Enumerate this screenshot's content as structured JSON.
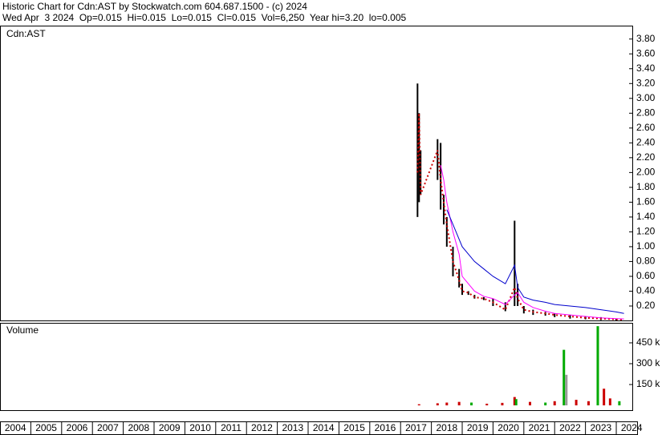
{
  "header": {
    "line1": "Historic Chart for Cdn:AST by Stockwatch.com 604.687.1500 - (c) 2024",
    "line2": "Wed Apr  3 2024  Op=0.015  Hi=0.015  Lo=0.015  Cl=0.015  Vol=6,250  Year hi=3.20  lo=0.005"
  },
  "chart_data": [
    {
      "type": "line",
      "title": "Cdn:AST",
      "x": [
        2017.55,
        2017.6,
        2017.65,
        2018.2,
        2018.3,
        2018.4,
        2018.5,
        2018.7,
        2018.9,
        2019.0,
        2019.2,
        2019.4,
        2019.7,
        2020.0,
        2020.4,
        2020.7,
        2020.8,
        2021.0,
        2021.3,
        2021.7,
        2022.0,
        2022.5,
        2023.0,
        2023.5,
        2024.0,
        2024.25
      ],
      "high": [
        3.2,
        2.8,
        2.3,
        2.45,
        2.4,
        1.7,
        1.4,
        1.0,
        0.7,
        0.5,
        0.4,
        0.35,
        0.32,
        0.3,
        0.25,
        1.35,
        0.5,
        0.2,
        0.15,
        0.12,
        0.1,
        0.08,
        0.06,
        0.05,
        0.03,
        0.015
      ],
      "low": [
        1.4,
        1.6,
        1.7,
        1.9,
        1.5,
        1.3,
        1.0,
        0.6,
        0.45,
        0.35,
        0.35,
        0.3,
        0.28,
        0.2,
        0.13,
        0.2,
        0.2,
        0.1,
        0.08,
        0.07,
        0.05,
        0.03,
        0.02,
        0.01,
        0.005,
        0.015
      ],
      "series": [
        {
          "color": "#cc0000",
          "dashed": true,
          "values": [
            2.0,
            2.8,
            1.7,
            2.3,
            1.9,
            1.6,
            1.3,
            0.8,
            0.55,
            0.4,
            0.38,
            0.32,
            0.3,
            0.25,
            0.15,
            0.45,
            0.3,
            0.15,
            0.12,
            0.1,
            0.08,
            0.06,
            0.04,
            0.03,
            0.02,
            0.015
          ]
        },
        {
          "color": "#ff00ff",
          "dashed": false,
          "values": [
            null,
            null,
            null,
            null,
            2.1,
            1.9,
            1.6,
            1.2,
            0.9,
            0.6,
            0.5,
            0.4,
            0.33,
            0.3,
            0.22,
            0.35,
            0.38,
            0.25,
            0.18,
            0.13,
            0.1,
            0.08,
            0.06,
            0.04,
            0.03,
            0.025
          ]
        },
        {
          "color": "#0000cc",
          "dashed": false,
          "values": [
            null,
            null,
            null,
            null,
            null,
            null,
            1.5,
            1.3,
            1.1,
            1.0,
            0.9,
            0.8,
            0.7,
            0.6,
            0.5,
            0.75,
            0.45,
            0.32,
            0.28,
            0.25,
            0.22,
            0.2,
            0.18,
            0.15,
            0.12,
            0.1
          ]
        }
      ],
      "xlim": [
        2004,
        2024.52
      ],
      "xticks": [
        2004,
        2005,
        2006,
        2007,
        2008,
        2009,
        2010,
        2011,
        2012,
        2013,
        2014,
        2015,
        2016,
        2017,
        2018,
        2019,
        2020,
        2021,
        2022,
        2023,
        2024
      ],
      "ylim": [
        0,
        3.97
      ],
      "yticks": [
        {
          "value": 0.2,
          "label": "0.20"
        },
        {
          "value": 0.4,
          "label": "0.40"
        },
        {
          "value": 0.6,
          "label": "0.60"
        },
        {
          "value": 0.8,
          "label": "0.80"
        },
        {
          "value": 1.0,
          "label": "1.00"
        },
        {
          "value": 1.2,
          "label": "1.20"
        },
        {
          "value": 1.4,
          "label": "1.40"
        },
        {
          "value": 1.6,
          "label": "1.60"
        },
        {
          "value": 1.8,
          "label": "1.80"
        },
        {
          "value": 2.0,
          "label": "2.00"
        },
        {
          "value": 2.2,
          "label": "2.20"
        },
        {
          "value": 2.4,
          "label": "2.40"
        },
        {
          "value": 2.6,
          "label": "2.60"
        },
        {
          "value": 2.8,
          "label": "2.80"
        },
        {
          "value": 3.0,
          "label": "3.00"
        },
        {
          "value": 3.2,
          "label": "3.20"
        },
        {
          "value": 3.4,
          "label": "3.40"
        },
        {
          "value": 3.6,
          "label": "3.60"
        },
        {
          "value": 3.8,
          "label": "3.80"
        }
      ]
    },
    {
      "type": "bar",
      "title": "Volume",
      "x": [
        2017.6,
        2018.2,
        2018.5,
        2018.9,
        2019.3,
        2019.8,
        2020.3,
        2020.7,
        2020.75,
        2021.2,
        2021.7,
        2022.0,
        2022.3,
        2022.38,
        2022.7,
        2023.1,
        2023.4,
        2023.6,
        2023.8,
        2024.1
      ],
      "values": [
        8000,
        15000,
        20000,
        25000,
        20000,
        12000,
        18000,
        60000,
        45000,
        25000,
        20000,
        30000,
        400000,
        220000,
        40000,
        30000,
        570000,
        120000,
        50000,
        30000
      ],
      "colors": [
        "#cc0000",
        "#cc0000",
        "#cc0000",
        "#cc0000",
        "#00aa00",
        "#cc0000",
        "#cc0000",
        "#cc0000",
        "#00aa00",
        "#cc0000",
        "#00aa00",
        "#cc0000",
        "#00aa00",
        "#999999",
        "#cc0000",
        "#cc0000",
        "#00aa00",
        "#cc0000",
        "#cc0000",
        "#00aa00"
      ],
      "ylim": [
        0,
        594000
      ],
      "yticks": [
        {
          "value": 150000,
          "label": "150 k"
        },
        {
          "value": 300000,
          "label": "300 k"
        },
        {
          "value": 450000,
          "label": "450 k"
        }
      ]
    }
  ]
}
